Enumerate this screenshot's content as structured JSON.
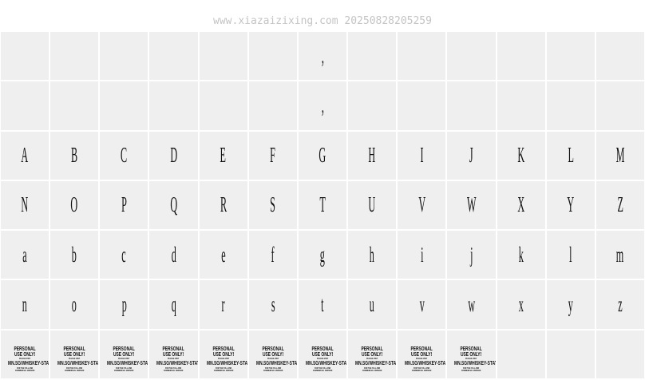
{
  "header": {
    "title": "www.xiazaizixing.com 20250828205259"
  },
  "grid": {
    "rows": [
      [
        null,
        null,
        null,
        null,
        null,
        null,
        ",",
        null,
        null,
        null,
        null,
        null,
        null
      ],
      [
        null,
        null,
        null,
        null,
        null,
        null,
        ",",
        null,
        null,
        null,
        null,
        null,
        null
      ],
      [
        "A",
        "B",
        "C",
        "D",
        "E",
        "F",
        "G",
        "H",
        "I",
        "J",
        "K",
        "L",
        "M"
      ],
      [
        "N",
        "O",
        "P",
        "Q",
        "R",
        "S",
        "T",
        "U",
        "V",
        "W",
        "X",
        "Y",
        "Z"
      ],
      [
        "a",
        "b",
        "c",
        "d",
        "e",
        "f",
        "g",
        "h",
        "i",
        "j",
        "k",
        "l",
        "m"
      ],
      [
        "n",
        "o",
        "p",
        "q",
        "r",
        "s",
        "t",
        "u",
        "v",
        "w",
        "x",
        "y",
        "z"
      ],
      [
        [
          "PERSONAL",
          "USE ONLY!",
          "PLEASE VISIT",
          "MN.SG/WHISKEY-STATI",
          "FOR THE FULL AND",
          "COMMERCIAL VERSION"
        ],
        [
          "PERSONAL",
          "USE ONLY!",
          "PLEASE VISIT",
          "MN.SG/WHISKEY-STATI",
          "FOR THE FULL AND",
          "COMMERCIAL VERSION"
        ],
        [
          "PERSONAL",
          "USE ONLY!",
          "PLEASE VISIT",
          "MN.SG/WHISKEY-STATI",
          "FOR THE FULL AND",
          "COMMERCIAL VERSION"
        ],
        [
          "PERSONAL",
          "USE ONLY!",
          "PLEASE VISIT",
          "MN.SG/WHISKEY-STATI",
          "FOR THE FULL AND",
          "COMMERCIAL VERSION"
        ],
        [
          "PERSONAL",
          "USE ONLY!",
          "PLEASE VISIT",
          "MN.SG/WHISKEY-STATI",
          "FOR THE FULL AND",
          "COMMERCIAL VERSION"
        ],
        [
          "PERSONAL",
          "USE ONLY!",
          "PLEASE VISIT",
          "MN.SG/WHISKEY-STATI",
          "FOR THE FULL AND",
          "COMMERCIAL VERSION"
        ],
        [
          "PERSONAL",
          "USE ONLY!",
          "PLEASE VISIT",
          "MN.SG/WHISKEY-STATI",
          "FOR THE FULL AND",
          "COMMERCIAL VERSION"
        ],
        [
          "PERSONAL",
          "USE ONLY!",
          "PLEASE VISIT",
          "MN.SG/WHISKEY-STATI",
          "FOR THE FULL AND",
          "COMMERCIAL VERSION"
        ],
        [
          "PERSONAL",
          "USE ONLY!",
          "PLEASE VISIT",
          "MN.SG/WHISKEY-STATI",
          "FOR THE FULL AND",
          "COMMERCIAL VERSION"
        ],
        [
          "PERSONAL",
          "USE ONLY!",
          "PLEASE VISIT",
          "MN.SG/WHISKEY-STATI",
          "FOR THE FULL AND",
          "COMMERCIAL VERSION"
        ],
        null,
        null,
        null
      ]
    ]
  }
}
